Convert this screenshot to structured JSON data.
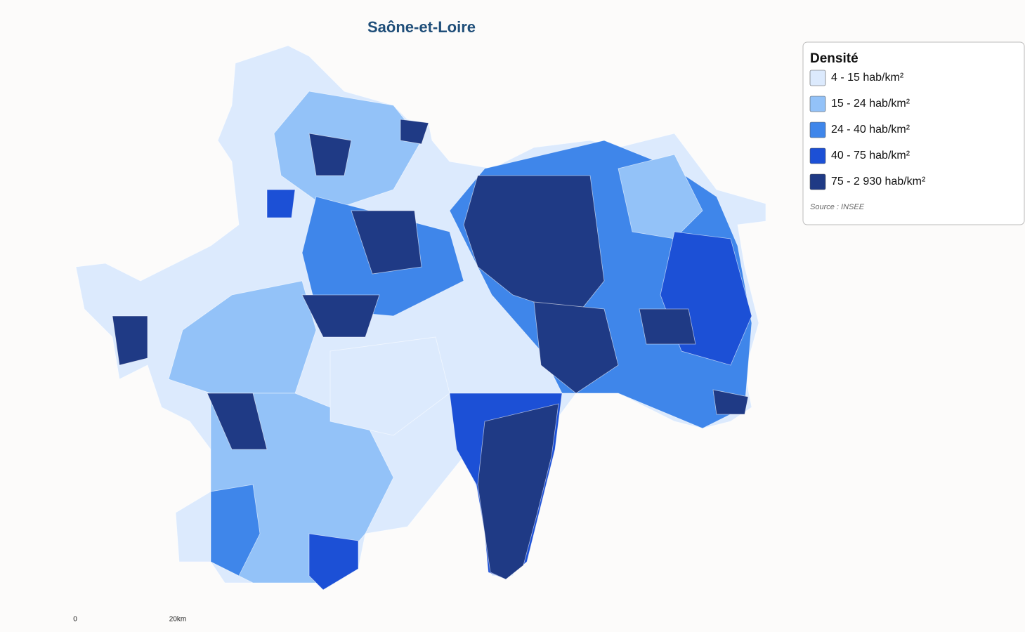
{
  "title": "Saône-et-Loire",
  "legend": {
    "title": "Densité",
    "items": [
      {
        "label": "4 - 15 hab/km²",
        "color": "#dceafd"
      },
      {
        "label": "15 - 24 hab/km²",
        "color": "#93c2f8"
      },
      {
        "label": "24 - 40 hab/km²",
        "color": "#3f86ea"
      },
      {
        "label": "40 - 75 hab/km²",
        "color": "#1c50d6"
      },
      {
        "label": "75 - 2 930 hab/km²",
        "color": "#1f3a85"
      }
    ],
    "source": "Source : INSEE"
  },
  "scale_bar": {
    "start": "0",
    "end": "20km"
  }
}
